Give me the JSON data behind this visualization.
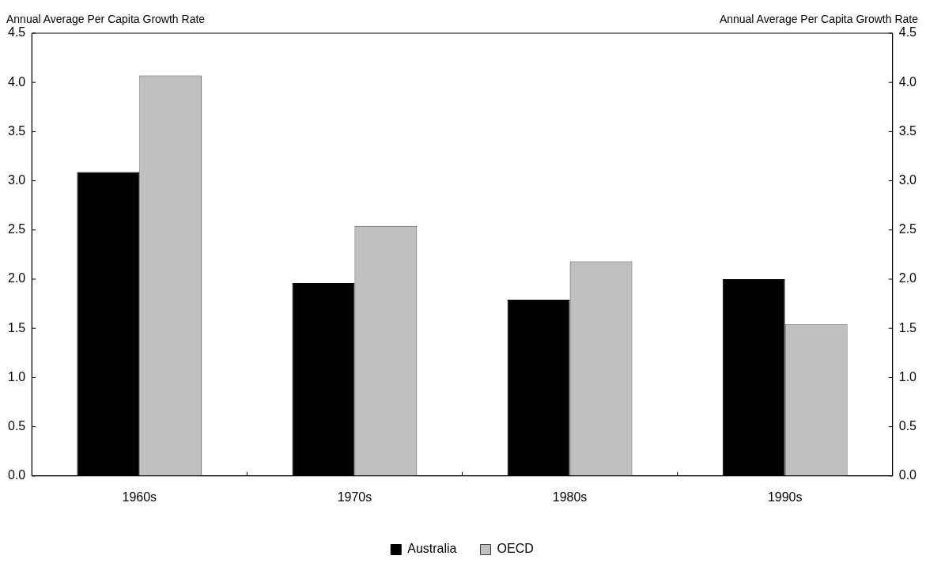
{
  "chart_data": {
    "type": "bar",
    "ylabel": "Annual Average Per Capita Growth Rate",
    "y2label": "Annual Average Per Capita Growth Rate",
    "categories": [
      "1960s",
      "1970s",
      "1980s",
      "1990s"
    ],
    "series": [
      {
        "name": "Australia",
        "color": "#000000",
        "values": [
          3.09,
          1.96,
          1.79,
          2.0
        ]
      },
      {
        "name": "OECD",
        "color": "#c0c0c0",
        "values": [
          4.07,
          2.54,
          2.18,
          1.54
        ]
      }
    ],
    "ylim": [
      0,
      4.5
    ],
    "yticks": [
      {
        "value": 0,
        "label": "0.0"
      },
      0.5,
      {
        "value": 1,
        "label": "1.0"
      },
      1.5,
      {
        "value": 2,
        "label": "2.0"
      },
      2.5,
      {
        "value": 3,
        "label": "3.0"
      },
      3.5,
      {
        "value": 4,
        "label": "4.0"
      },
      4.5
    ],
    "y2lim": [
      0,
      4.5
    ],
    "y2ticks": [
      {
        "value": 0,
        "label": "0.0"
      },
      0.5,
      {
        "value": 1,
        "label": "1.0"
      },
      1.5,
      {
        "value": 2,
        "label": "2.0"
      },
      2.5,
      {
        "value": 3,
        "label": "3.0"
      },
      3.5,
      {
        "value": 4,
        "label": "4.0"
      },
      4.5
    ],
    "grid": false,
    "legend": "bottom"
  }
}
